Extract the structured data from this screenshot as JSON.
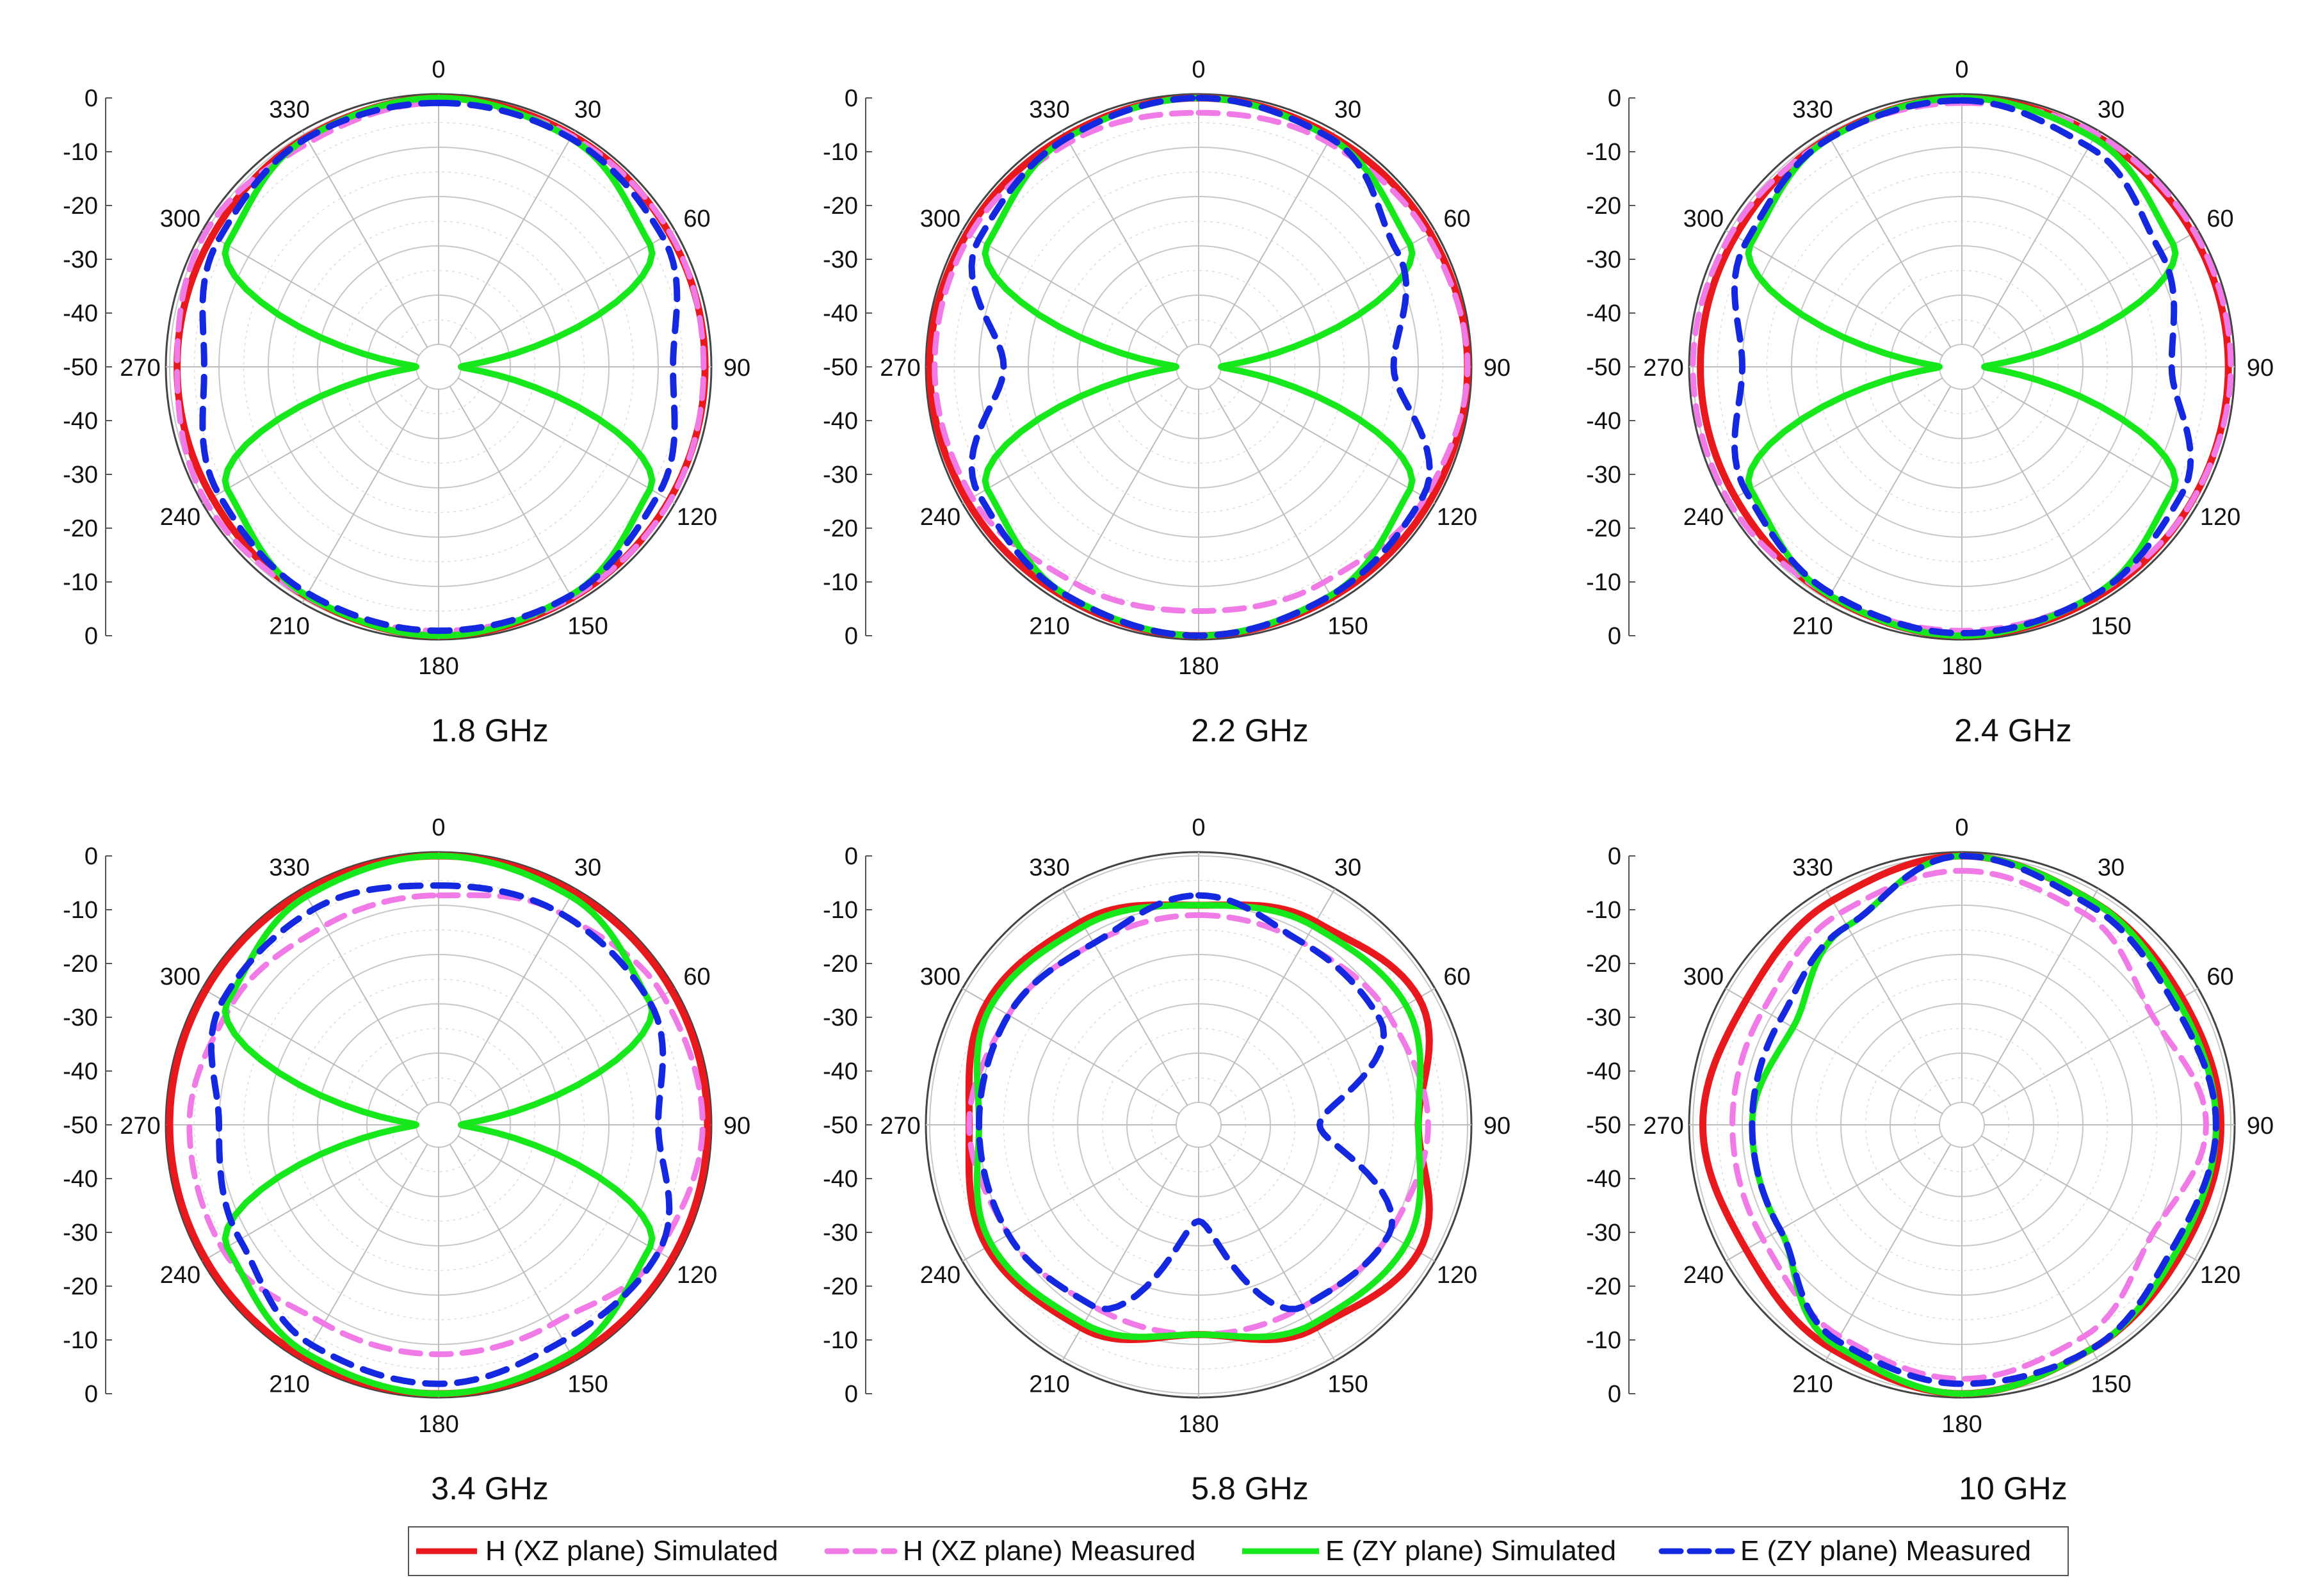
{
  "figure": {
    "background": "#ffffff",
    "angle_ticks": [
      "0",
      "30",
      "60",
      "90",
      "120",
      "150",
      "180",
      "210",
      "240",
      "270",
      "300",
      "330"
    ],
    "radial_ticks": [
      "0",
      "-10",
      "-20",
      "-30",
      "-40",
      "-50",
      "-40",
      "-30",
      "-20",
      "-10",
      "0"
    ]
  },
  "legend": {
    "items": [
      {
        "label": "H (XZ plane) Simulated",
        "color": "#e8191c",
        "style": "solid"
      },
      {
        "label": "H (XZ plane) Measured",
        "color": "#f07ae6",
        "style": "dashed"
      },
      {
        "label": "E (ZY plane) Simulated",
        "color": "#17e81c",
        "style": "solid"
      },
      {
        "label": "E (ZY plane) Measured",
        "color": "#1428e0",
        "style": "dashed"
      }
    ]
  },
  "chart_data": [
    {
      "type": "polar",
      "title": "1.8 GHz",
      "theta_unit": "deg",
      "r_range": [
        -50,
        0
      ],
      "r_unit": "dB",
      "theta": [
        0,
        30,
        60,
        90,
        120,
        150,
        180,
        210,
        240,
        270,
        300,
        330
      ],
      "series": [
        {
          "name": "H (XZ plane) Simulated",
          "values": [
            0,
            -0.3,
            -0.5,
            -0.5,
            -0.5,
            -0.4,
            0,
            -0.8,
            -1.5,
            -1.5,
            -1.5,
            -0.8
          ]
        },
        {
          "name": "H (XZ plane) Measured",
          "values": [
            -1,
            -0.5,
            -0.3,
            -0.8,
            -0.3,
            -0.5,
            -1,
            -0.8,
            0,
            -1.5,
            0,
            -2
          ]
        },
        {
          "name": "E (ZY plane) Simulated",
          "values": [
            0,
            -1,
            -5,
            -50,
            -5,
            -1,
            0,
            -1,
            -5,
            -50,
            -5,
            -1
          ]
        },
        {
          "name": "E (ZY plane) Measured",
          "values": [
            -1,
            -1,
            -2,
            -7,
            -3,
            -1,
            -1,
            -1.5,
            -3,
            -7,
            -3,
            -1
          ]
        }
      ]
    },
    {
      "type": "polar",
      "title": "2.2 GHz",
      "theta_unit": "deg",
      "r_range": [
        -50,
        0
      ],
      "r_unit": "dB",
      "theta": [
        0,
        30,
        60,
        90,
        120,
        150,
        180,
        210,
        240,
        270,
        300,
        330
      ],
      "series": [
        {
          "name": "H (XZ plane) Simulated",
          "values": [
            0,
            -0.5,
            -0.3,
            0,
            -0.3,
            -0.5,
            0,
            -0.5,
            -0.3,
            0,
            -0.3,
            -0.5
          ]
        },
        {
          "name": "H (XZ plane) Measured",
          "values": [
            -3,
            -2,
            -1,
            0,
            -1.5,
            -4,
            -5,
            -4,
            -1.5,
            -1,
            -1,
            -2
          ]
        },
        {
          "name": "E (ZY plane) Simulated",
          "values": [
            0,
            -1,
            -5,
            -50,
            -5,
            -1,
            0,
            -1,
            -5,
            -50,
            -5,
            -1
          ]
        },
        {
          "name": "E (ZY plane) Measured",
          "values": [
            0,
            -1,
            -8,
            -15,
            -2,
            -1,
            0,
            -1,
            -3,
            -15,
            -3,
            -1
          ]
        }
      ]
    },
    {
      "type": "polar",
      "title": "2.4 GHz",
      "theta_unit": "deg",
      "r_range": [
        -50,
        0
      ],
      "r_unit": "dB",
      "theta": [
        0,
        30,
        60,
        90,
        120,
        150,
        180,
        210,
        240,
        270,
        300,
        330
      ],
      "series": [
        {
          "name": "H (XZ plane) Simulated",
          "values": [
            0,
            -0.3,
            -0.5,
            -0.5,
            -0.5,
            -0.4,
            0,
            -0.8,
            -1.5,
            -1.5,
            -1.5,
            -0.8
          ]
        },
        {
          "name": "H (XZ plane) Measured",
          "values": [
            -1,
            0,
            0,
            0,
            -0.5,
            -1,
            -1,
            -1,
            0,
            0,
            -0.5,
            -1
          ]
        },
        {
          "name": "E (ZY plane) Simulated",
          "values": [
            0,
            -1,
            -5,
            -50,
            -5,
            -1,
            0,
            -1,
            -5,
            -50,
            -5,
            -1
          ]
        },
        {
          "name": "E (ZY plane) Measured",
          "values": [
            -0.5,
            -3,
            -8,
            -12,
            -3,
            -1,
            -0.5,
            -1.5,
            -4,
            -10,
            -4,
            -1
          ]
        }
      ]
    },
    {
      "type": "polar",
      "title": "3.4 GHz",
      "theta_unit": "deg",
      "r_range": [
        -50,
        0
      ],
      "r_unit": "dB",
      "theta": [
        0,
        30,
        60,
        90,
        120,
        150,
        180,
        210,
        240,
        270,
        300,
        330
      ],
      "series": [
        {
          "name": "H (XZ plane) Simulated",
          "values": [
            0,
            0,
            0,
            0,
            0,
            0,
            0,
            0,
            0,
            0,
            0,
            0
          ]
        },
        {
          "name": "H (XZ plane) Measured",
          "values": [
            -8,
            -5,
            -2,
            -1,
            -3,
            -8,
            -8,
            -8,
            -4,
            -4,
            -6,
            -8
          ]
        },
        {
          "name": "E (ZY plane) Simulated",
          "values": [
            0,
            -1,
            -5,
            -50,
            -5,
            -1,
            0,
            -1,
            -5,
            -50,
            -5,
            -1
          ]
        },
        {
          "name": "E (ZY plane) Measured",
          "values": [
            -6,
            -5,
            -5,
            -10,
            -3,
            -4,
            -2,
            -3,
            -8,
            -10,
            -4,
            -4
          ]
        }
      ]
    },
    {
      "type": "polar",
      "title": "5.8 GHz",
      "theta_unit": "deg",
      "r_range": [
        -50,
        0
      ],
      "r_unit": "dB",
      "theta": [
        0,
        30,
        60,
        90,
        120,
        150,
        180,
        210,
        240,
        270,
        300,
        330
      ],
      "series": [
        {
          "name": "H (XZ plane) Simulated",
          "values": [
            -10,
            -7,
            -3,
            -10,
            -3,
            -7,
            -12,
            -7,
            -5,
            -8,
            -5,
            -7
          ]
        },
        {
          "name": "H (XZ plane) Measured",
          "values": [
            -12,
            -12,
            -10,
            -8,
            -10,
            -12,
            -12,
            -12,
            -10,
            -8,
            -10,
            -12
          ]
        },
        {
          "name": "E (ZY plane) Simulated",
          "values": [
            -10,
            -8,
            -6,
            -10,
            -6,
            -8,
            -12,
            -8,
            -6,
            -10,
            -6,
            -8
          ]
        },
        {
          "name": "E (ZY plane) Measured",
          "values": [
            -8,
            -12,
            -12,
            -30,
            -10,
            -12,
            -35,
            -12,
            -10,
            -10,
            -10,
            -12
          ]
        }
      ]
    },
    {
      "type": "polar",
      "title": "10 GHz",
      "theta_unit": "deg",
      "r_range": [
        -50,
        0
      ],
      "r_unit": "dB",
      "theta": [
        0,
        30,
        60,
        90,
        120,
        150,
        180,
        210,
        240,
        270,
        300,
        330
      ],
      "series": [
        {
          "name": "H (XZ plane) Simulated",
          "values": [
            0,
            -2,
            -3,
            -2,
            -3,
            -2,
            0,
            -2,
            -4,
            -2,
            -4,
            -2
          ]
        },
        {
          "name": "H (XZ plane) Measured",
          "values": [
            -3,
            -5,
            -10,
            -5,
            -10,
            -5,
            -3,
            -5,
            -8,
            -8,
            -8,
            -5
          ]
        },
        {
          "name": "E (ZY plane) Simulated",
          "values": [
            0,
            -2,
            -4,
            -3,
            -4,
            -2,
            0,
            -3,
            -12,
            -12,
            -15,
            -8
          ]
        },
        {
          "name": "E (ZY plane) Measured",
          "values": [
            0,
            -3,
            -5,
            -3,
            -5,
            -2,
            -2,
            -4,
            -12,
            -12,
            -12,
            -8
          ]
        }
      ]
    }
  ]
}
